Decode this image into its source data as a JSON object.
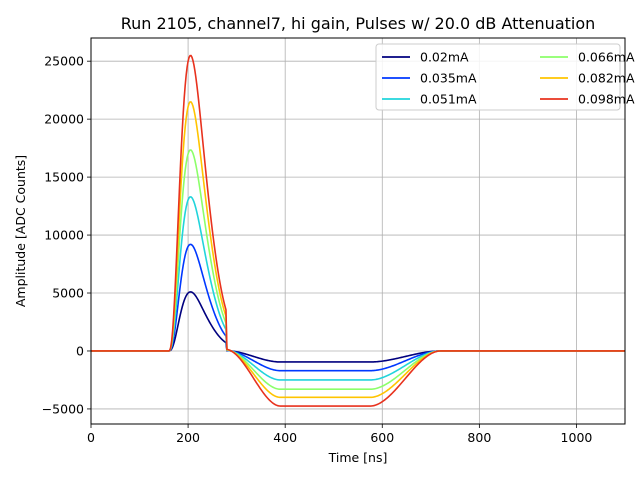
{
  "chart_data": {
    "type": "line",
    "title": "Run 2105, channel7, hi gain, Pulses w/ 20.0 dB Attenuation",
    "xlabel": "Time [ns]",
    "ylabel": "Amplitude [ADC Counts]",
    "xlim": [
      0,
      1100
    ],
    "ylim": [
      -6300,
      27000
    ],
    "xticks": [
      0,
      200,
      400,
      600,
      800,
      1000
    ],
    "yticks": [
      -5000,
      0,
      5000,
      10000,
      15000,
      20000,
      25000
    ],
    "ytick_labels": [
      "−5000",
      "0",
      "5000",
      "10000",
      "15000",
      "20000",
      "25000"
    ],
    "grid": true,
    "legend": {
      "placement": "top-right",
      "columns": 2
    },
    "series": [
      {
        "name": "0.02mA",
        "color": "#00007f",
        "peak": 5100,
        "undershoot": -950
      },
      {
        "name": "0.035mA",
        "color": "#0038ff",
        "peak": 9200,
        "undershoot": -1700
      },
      {
        "name": "0.051mA",
        "color": "#21d4db",
        "peak": 13300,
        "undershoot": -2500
      },
      {
        "name": "0.066mA",
        "color": "#8cff6a",
        "peak": 17350,
        "undershoot": -3300
      },
      {
        "name": "0.082mA",
        "color": "#ffc400",
        "peak": 21500,
        "undershoot": -4000
      },
      {
        "name": "0.098mA",
        "color": "#e8321e",
        "peak": 25500,
        "undershoot": -4750
      }
    ],
    "waveform_shape": {
      "x_rise_start": 160,
      "x_peak": 205,
      "x_zero_cross": 280,
      "x_undershoot_flat_start": 390,
      "x_recovery_start": 575,
      "x_recovery_end": 720
    }
  }
}
